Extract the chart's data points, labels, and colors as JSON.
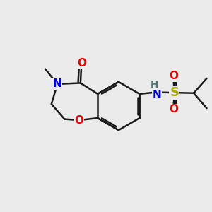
{
  "bg_color": "#ebebeb",
  "bond_color": "#1a1a1a",
  "N_color": "#0000ee",
  "O_color": "#ee0000",
  "S_color": "#aaaa00",
  "NH_N_color": "#0000ee",
  "NH_H_color": "#4a9090",
  "line_width": 1.8,
  "font_size": 11,
  "figsize": [
    3.0,
    3.0
  ],
  "dpi": 100,
  "xlim": [
    0,
    10
  ],
  "ylim": [
    0,
    10
  ]
}
